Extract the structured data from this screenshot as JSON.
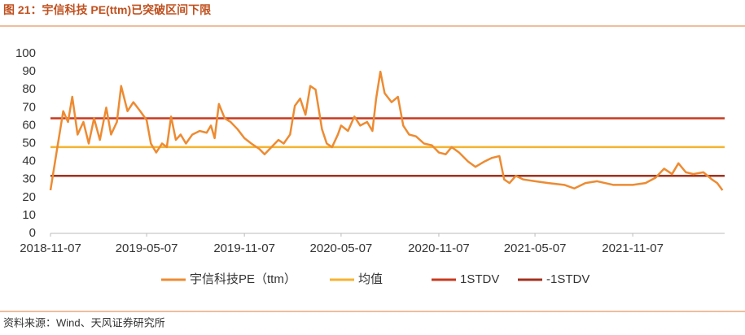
{
  "title": "图 21：宇信科技 PE(ttm)已突破区间下限",
  "source": "资料来源：Wind、天风证券研究所",
  "chart_data": {
    "type": "line",
    "x": [
      "2018-11-07",
      "2018-11-20",
      "2018-12-01",
      "2018-12-10",
      "2018-12-18",
      "2018-12-28",
      "2019-01-08",
      "2019-01-18",
      "2019-01-28",
      "2019-02-08",
      "2019-02-20",
      "2019-03-01",
      "2019-03-12",
      "2019-03-20",
      "2019-04-01",
      "2019-04-12",
      "2019-04-25",
      "2019-05-07",
      "2019-05-15",
      "2019-05-25",
      "2019-06-05",
      "2019-06-14",
      "2019-06-22",
      "2019-07-01",
      "2019-07-10",
      "2019-07-20",
      "2019-08-01",
      "2019-08-15",
      "2019-08-28",
      "2019-09-05",
      "2019-09-12",
      "2019-09-20",
      "2019-10-01",
      "2019-10-12",
      "2019-10-25",
      "2019-11-07",
      "2019-11-20",
      "2019-12-05",
      "2019-12-15",
      "2019-12-28",
      "2020-01-10",
      "2020-01-20",
      "2020-02-01",
      "2020-02-10",
      "2020-02-20",
      "2020-03-01",
      "2020-03-10",
      "2020-03-20",
      "2020-04-01",
      "2020-04-10",
      "2020-04-20",
      "2020-05-01",
      "2020-05-07",
      "2020-05-20",
      "2020-06-01",
      "2020-06-12",
      "2020-06-25",
      "2020-07-05",
      "2020-07-12",
      "2020-07-20",
      "2020-07-28",
      "2020-08-10",
      "2020-08-22",
      "2020-09-01",
      "2020-09-12",
      "2020-09-25",
      "2020-10-10",
      "2020-10-25",
      "2020-11-07",
      "2020-11-20",
      "2020-12-01",
      "2020-12-15",
      "2021-01-01",
      "2021-01-15",
      "2021-02-01",
      "2021-02-15",
      "2021-03-01",
      "2021-03-10",
      "2021-03-20",
      "2021-04-01",
      "2021-04-15",
      "2021-05-07",
      "2021-06-01",
      "2021-07-01",
      "2021-07-20",
      "2021-08-10",
      "2021-09-01",
      "2021-10-01",
      "2021-11-07",
      "2021-12-01",
      "2021-12-20",
      "2022-01-05",
      "2022-01-20",
      "2022-02-01",
      "2022-02-15",
      "2022-03-01",
      "2022-03-20",
      "2022-04-05",
      "2022-04-15",
      "2022-04-25"
    ],
    "series": [
      {
        "name": "宇信科技PE（ttm）",
        "color": "#ed8b32",
        "values": [
          24,
          48,
          68,
          62,
          76,
          55,
          62,
          50,
          64,
          52,
          70,
          55,
          62,
          82,
          68,
          73,
          68,
          63,
          50,
          45,
          50,
          48,
          65,
          52,
          55,
          50,
          55,
          57,
          56,
          60,
          53,
          72,
          64,
          62,
          58,
          53,
          50,
          47,
          44,
          48,
          52,
          50,
          55,
          71,
          75,
          66,
          82,
          80,
          58,
          50,
          48,
          55,
          60,
          57,
          65,
          60,
          62,
          57,
          75,
          90,
          78,
          73,
          76,
          60,
          55,
          54,
          50,
          49,
          45,
          44,
          48,
          45,
          40,
          37,
          40,
          42,
          43,
          30,
          28,
          32,
          30,
          29,
          28,
          27,
          25,
          28,
          29,
          27,
          27,
          28,
          31,
          36,
          33,
          39,
          34,
          33,
          34,
          30,
          28,
          24
        ]
      }
    ],
    "hlines": [
      {
        "name": "均值",
        "value": 48,
        "color": "#f5b331"
      },
      {
        "name": "1STDV",
        "value": 64,
        "color": "#c8391f"
      },
      {
        "name": "-1STDV",
        "value": 32,
        "color": "#a3301c"
      }
    ],
    "xlim": [
      "2018-11-07",
      "2022-04-29"
    ],
    "xticks": [
      "2018-11-07",
      "2019-05-07",
      "2019-11-07",
      "2020-05-07",
      "2020-11-07",
      "2021-05-07",
      "2021-11-07"
    ],
    "ylim": [
      0,
      100
    ],
    "yticks": [
      0,
      10,
      20,
      30,
      40,
      50,
      60,
      70,
      80,
      90,
      100
    ]
  }
}
